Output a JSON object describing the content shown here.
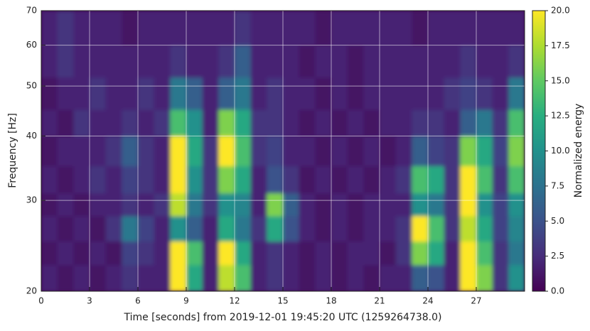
{
  "chart_data": {
    "type": "heatmap",
    "xlabel": "Time [seconds] from 2019-12-01 19:45:20 UTC (1259264738.0)",
    "ylabel": "Frequency [Hz]",
    "colorbar_label": "Normalized energy",
    "colormap": "viridis",
    "log_y": true,
    "grid": true,
    "xlim": [
      0,
      30
    ],
    "ylim": [
      20,
      70
    ],
    "xticks": [
      0,
      3,
      6,
      9,
      12,
      15,
      18,
      21,
      24,
      27
    ],
    "yticks": [
      20,
      30,
      40,
      50,
      60,
      70
    ],
    "clim": [
      0,
      20
    ],
    "cticks": [
      {
        "value": 0,
        "label": "0.0"
      },
      2.5,
      {
        "value": 5,
        "label": "5.0"
      },
      7.5,
      {
        "value": 10,
        "label": "10.0"
      },
      12.5,
      {
        "value": 15,
        "label": "15.0"
      },
      17.5,
      {
        "value": 20,
        "label": "20.0"
      }
    ],
    "xbins": [
      0,
      1,
      2,
      3,
      4,
      5,
      6,
      7,
      8,
      9,
      10,
      11,
      12,
      13,
      14,
      15,
      16,
      17,
      18,
      19,
      20,
      21,
      22,
      23,
      24,
      25,
      26,
      27,
      28,
      29,
      30
    ],
    "ybins": [
      20,
      22.5,
      25,
      28,
      31,
      35,
      40,
      45,
      52,
      60,
      70
    ],
    "z": [
      [
        2,
        1,
        2,
        1,
        2,
        3,
        2,
        2,
        20,
        12,
        2,
        18,
        14,
        2,
        3,
        2,
        1,
        2,
        1,
        2,
        1,
        2,
        2,
        6,
        5,
        2,
        20,
        16,
        3,
        10
      ],
      [
        1,
        2,
        1,
        2,
        1,
        4,
        3,
        2,
        20,
        14,
        2,
        20,
        12,
        2,
        3,
        2,
        1,
        2,
        1,
        2,
        2,
        1,
        3,
        16,
        12,
        2,
        20,
        14,
        3,
        8
      ],
      [
        2,
        1,
        2,
        1,
        3,
        8,
        4,
        2,
        10,
        6,
        2,
        12,
        8,
        3,
        12,
        5,
        2,
        1,
        2,
        1,
        2,
        2,
        3,
        20,
        14,
        3,
        18,
        12,
        4,
        9
      ],
      [
        1,
        2,
        1,
        2,
        2,
        3,
        2,
        3,
        18,
        8,
        3,
        10,
        9,
        2,
        16,
        6,
        2,
        1,
        2,
        1,
        2,
        2,
        2,
        10,
        8,
        3,
        20,
        10,
        4,
        10
      ],
      [
        2,
        1,
        2,
        3,
        2,
        4,
        3,
        2,
        20,
        10,
        3,
        16,
        12,
        2,
        5,
        3,
        1,
        2,
        1,
        2,
        1,
        2,
        3,
        14,
        12,
        3,
        20,
        14,
        3,
        14
      ],
      [
        1,
        2,
        2,
        2,
        3,
        6,
        3,
        2,
        20,
        12,
        3,
        20,
        14,
        3,
        4,
        2,
        2,
        1,
        2,
        1,
        2,
        1,
        2,
        6,
        4,
        3,
        16,
        12,
        4,
        16
      ],
      [
        2,
        1,
        3,
        2,
        2,
        3,
        2,
        3,
        14,
        10,
        2,
        16,
        12,
        3,
        3,
        2,
        1,
        2,
        1,
        2,
        1,
        2,
        2,
        3,
        3,
        2,
        6,
        8,
        3,
        14
      ],
      [
        1,
        2,
        2,
        3,
        2,
        2,
        3,
        2,
        8,
        6,
        2,
        6,
        8,
        2,
        3,
        2,
        2,
        1,
        2,
        1,
        2,
        2,
        2,
        2,
        2,
        3,
        4,
        3,
        2,
        8
      ],
      [
        2,
        3,
        2,
        2,
        2,
        2,
        2,
        2,
        3,
        2,
        2,
        3,
        6,
        2,
        2,
        2,
        1,
        2,
        2,
        1,
        2,
        2,
        2,
        2,
        2,
        2,
        3,
        2,
        2,
        3
      ],
      [
        2,
        3,
        2,
        2,
        2,
        1,
        2,
        2,
        2,
        2,
        2,
        2,
        3,
        2,
        2,
        2,
        2,
        1,
        2,
        2,
        2,
        2,
        2,
        1,
        2,
        2,
        2,
        2,
        2,
        2
      ]
    ]
  }
}
